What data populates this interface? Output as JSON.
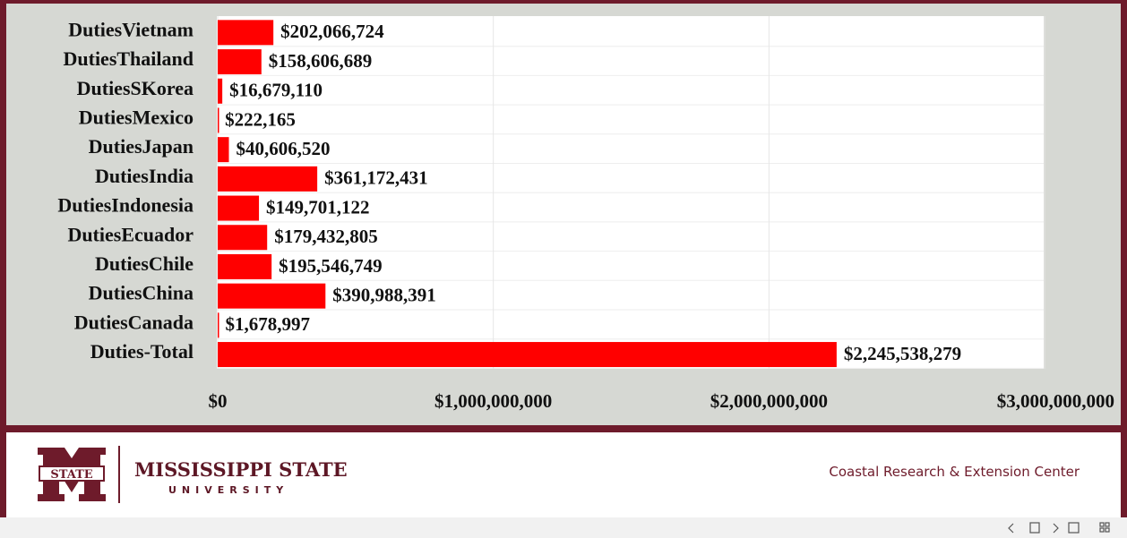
{
  "chart_data": {
    "type": "bar",
    "orientation": "horizontal",
    "color": "#ff0000",
    "grid": true,
    "categories": [
      "DutiesVietnam",
      "DutiesThailand",
      "DutiesSKorea",
      "DutiesMexico",
      "DutiesJapan",
      "DutiesIndia",
      "DutiesIndonesia",
      "DutiesEcuador",
      "DutiesChile",
      "DutiesChina",
      "DutiesCanada",
      "Duties-Total"
    ],
    "values": [
      202066724,
      158606689,
      16679110,
      222165,
      40606520,
      361172431,
      149701122,
      179432805,
      195546749,
      390988391,
      1678997,
      2245538279
    ],
    "value_labels": [
      "$202,066,724",
      "$158,606,689",
      "$16,679,110",
      "$222,165",
      "$40,606,520",
      "$361,172,431",
      "$149,701,122",
      "$179,432,805",
      "$195,546,749",
      "$390,988,391",
      "$1,678,997",
      "$2,245,538,279"
    ],
    "xlim": [
      0,
      3000000000
    ],
    "xticks": [
      {
        "value": 0,
        "label": "$0"
      },
      {
        "value": 1000000000,
        "label": "$1,000,000,000"
      },
      {
        "value": 2000000000,
        "label": "$2,000,000,000"
      },
      {
        "value": 3000000000,
        "label": "$3,000,000,000"
      }
    ]
  },
  "footer": {
    "logo_text": "STATE",
    "university": "MISSISSIPPI STATE",
    "university_sub": "UNIVERSITY",
    "center": "Coastal Research & Extension Center"
  }
}
